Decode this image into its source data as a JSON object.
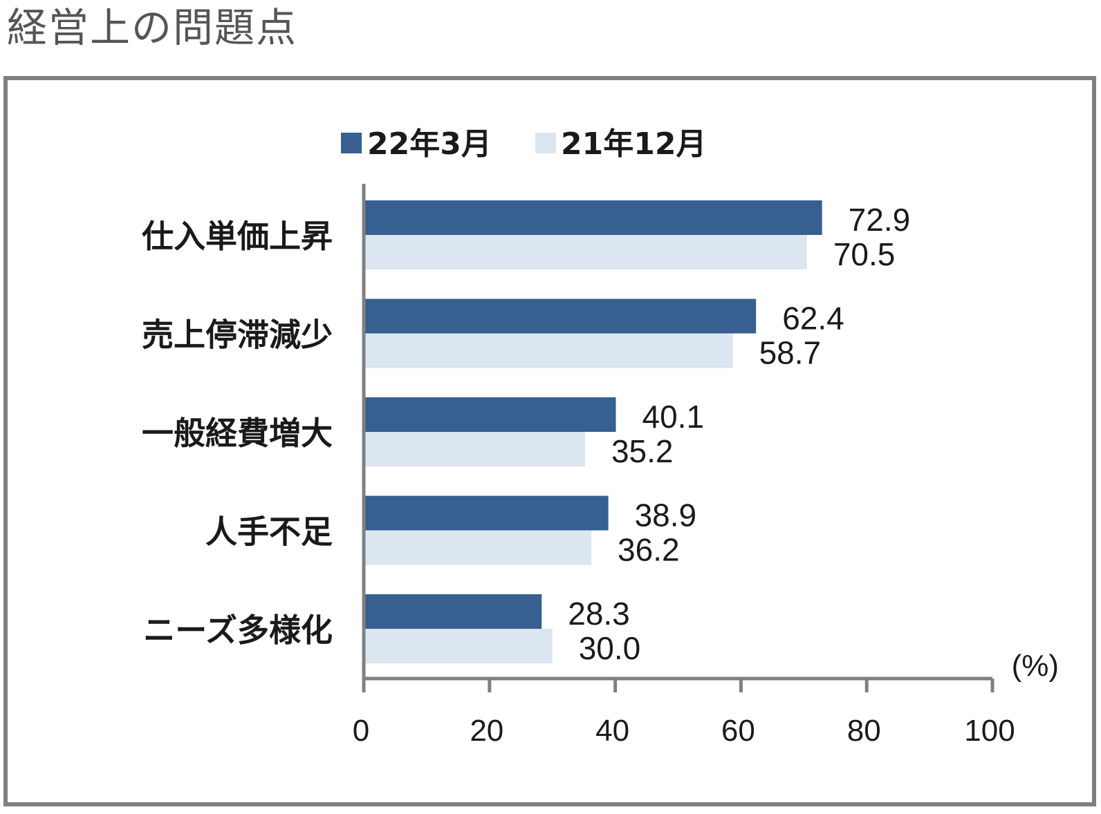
{
  "title": "経営上の問題点",
  "chart_data": {
    "type": "bar",
    "orientation": "horizontal",
    "categories": [
      "仕入単価上昇",
      "売上停滞減少",
      "一般経費増大",
      "人手不足",
      "ニーズ多様化"
    ],
    "series": [
      {
        "name": "22年3月",
        "color": "#375f8f",
        "values": [
          72.9,
          62.4,
          40.1,
          38.9,
          28.3
        ],
        "labels": [
          "72.9",
          "62.4",
          "40.1",
          "38.9",
          "28.3"
        ]
      },
      {
        "name": "21年12月",
        "color": "#dce6f1",
        "values": [
          70.5,
          58.7,
          35.2,
          36.2,
          30.0
        ],
        "labels": [
          "70.5",
          "58.7",
          "35.2",
          "36.2",
          "30.0"
        ]
      }
    ],
    "xlim": [
      0,
      100
    ],
    "xticks": [
      0,
      20,
      40,
      60,
      80,
      100
    ],
    "xtick_labels": [
      "0",
      "20",
      "40",
      "60",
      "80",
      "100"
    ],
    "unit": "(%)",
    "legend_position": "top"
  }
}
